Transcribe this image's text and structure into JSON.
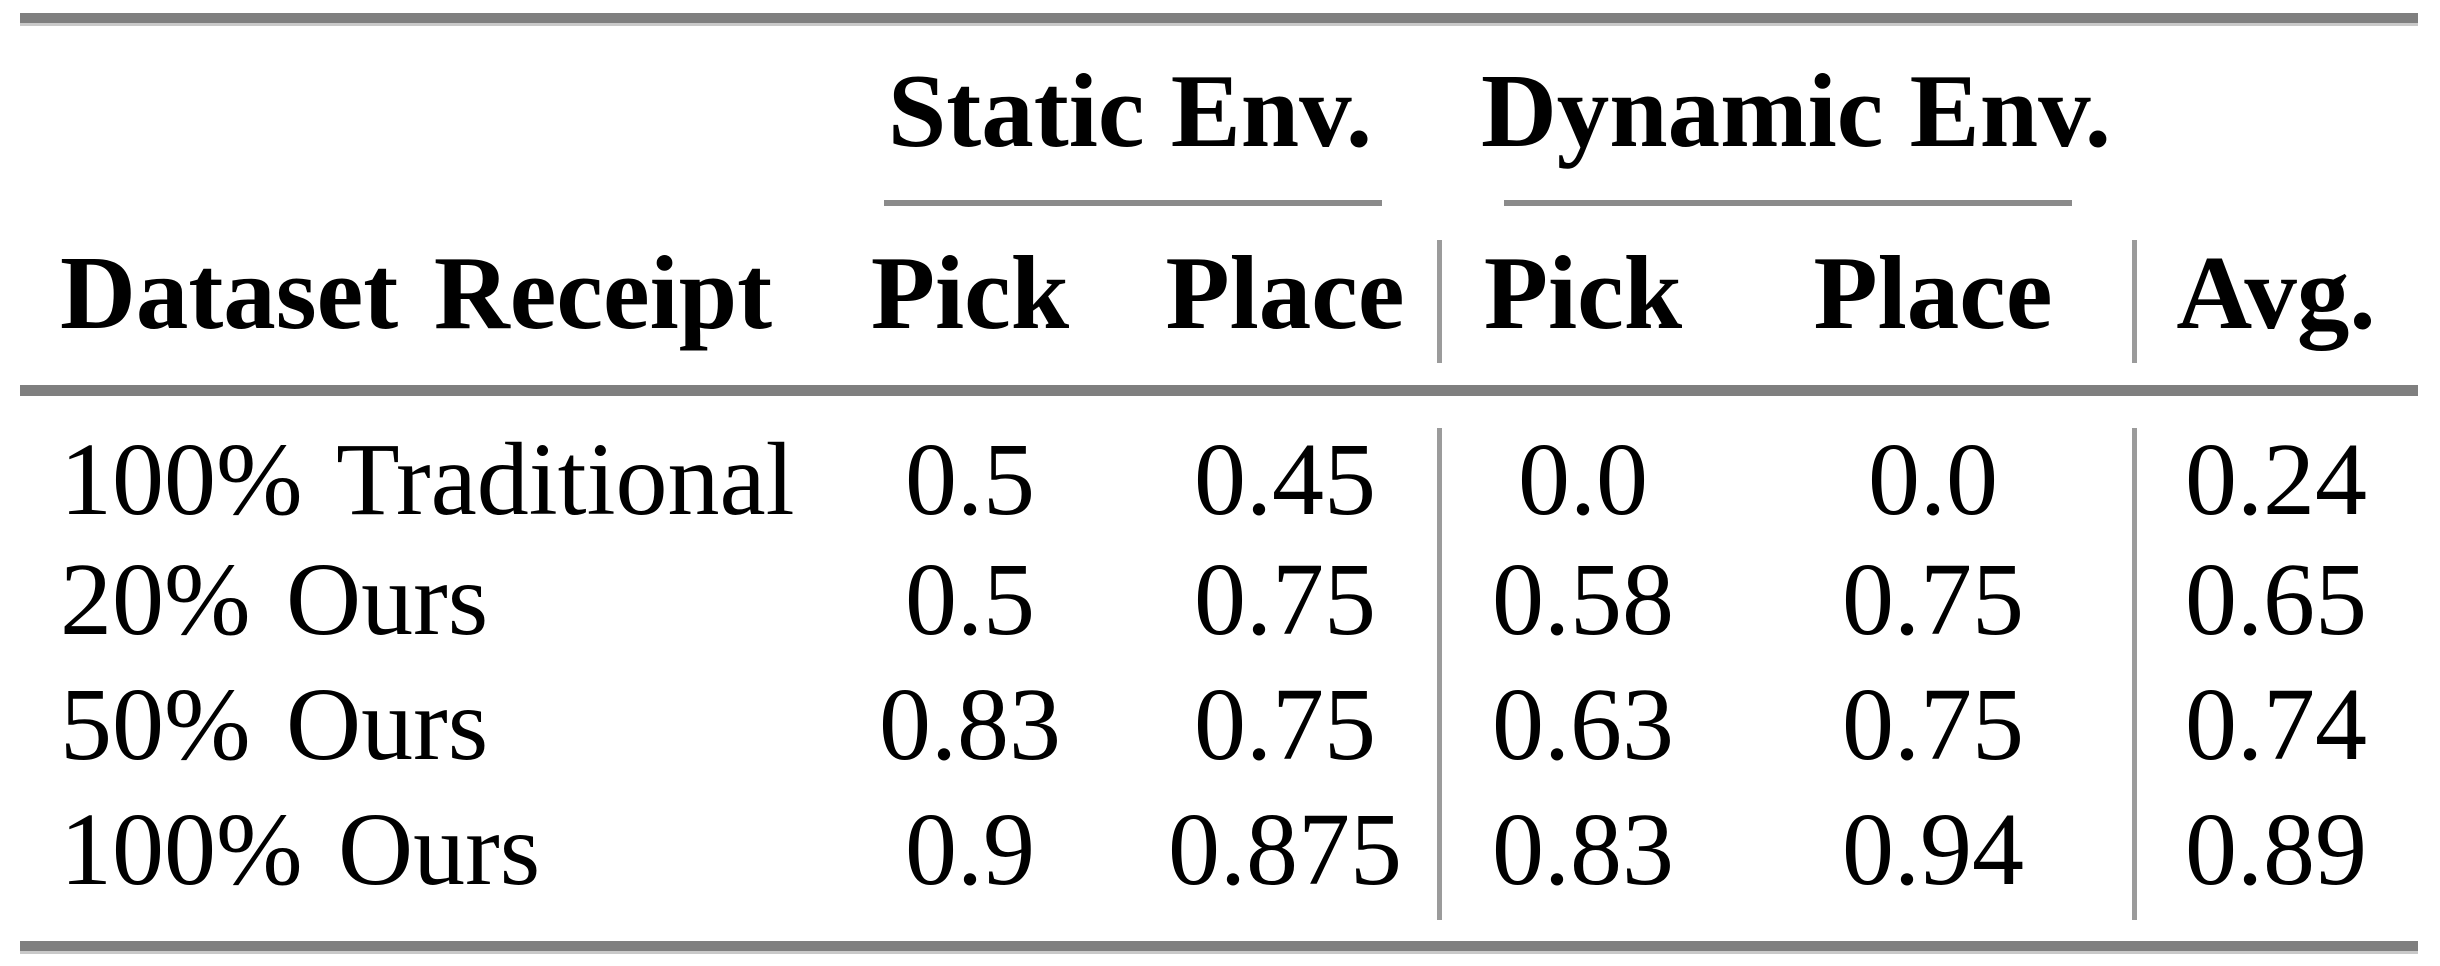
{
  "table": {
    "group_headers": {
      "static": "Static Env.",
      "dynamic": "Dynamic Env."
    },
    "columns": {
      "label": "Dataset Receipt",
      "static_pick": "Pick",
      "static_place": "Place",
      "dynamic_pick": "Pick",
      "dynamic_place": "Place",
      "avg": "Avg."
    },
    "rows": [
      {
        "label": "100% Traditional",
        "static_pick": "0.5",
        "static_place": "0.45",
        "dynamic_pick": "0.0",
        "dynamic_place": "0.0",
        "avg": "0.24"
      },
      {
        "label": "20% Ours",
        "static_pick": "0.5",
        "static_place": "0.75",
        "dynamic_pick": "0.58",
        "dynamic_place": "0.75",
        "avg": "0.65"
      },
      {
        "label": "50% Ours",
        "static_pick": "0.83",
        "static_place": "0.75",
        "dynamic_pick": "0.63",
        "dynamic_place": "0.75",
        "avg": "0.74"
      },
      {
        "label": "100% Ours",
        "static_pick": "0.9",
        "static_place": "0.875",
        "dynamic_pick": "0.83",
        "dynamic_place": "0.94",
        "avg": "0.89"
      }
    ]
  },
  "colors": {
    "background": "#ffffff",
    "text": "#000000",
    "rule": "#7f7f7f",
    "rule_edge": "#c9c9c9",
    "cmidrule": "#8b8b8b",
    "vline": "#9b9b9b"
  }
}
